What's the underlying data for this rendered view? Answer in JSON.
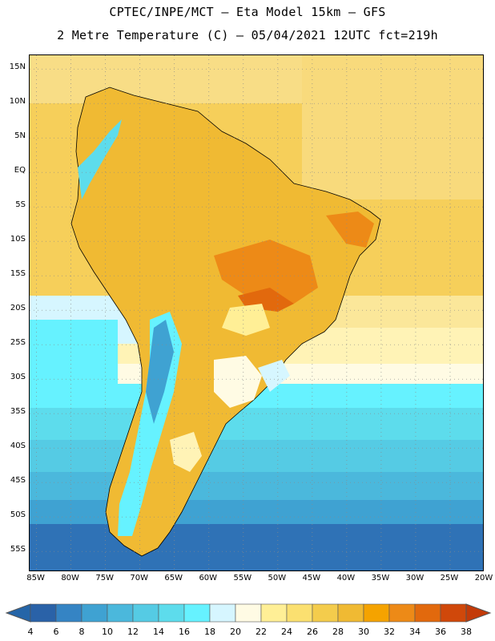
{
  "header": {
    "title_line1": "CPTEC/INPE/MCT –  Eta Model 15km – GFS",
    "title_line2": "2 Metre Temperature (C) – 05/04/2021 12UTC fct=219h"
  },
  "map": {
    "region": "South America",
    "variable": "2 Metre Temperature",
    "units": "C",
    "lon_range": [
      -86,
      -20
    ],
    "lat_range": [
      -58,
      17
    ],
    "lat_ticks": [
      {
        "value": 15,
        "label": "15N"
      },
      {
        "value": 10,
        "label": "10N"
      },
      {
        "value": 5,
        "label": "5N"
      },
      {
        "value": 0,
        "label": "EQ"
      },
      {
        "value": -5,
        "label": "5S"
      },
      {
        "value": -10,
        "label": "10S"
      },
      {
        "value": -15,
        "label": "15S"
      },
      {
        "value": -20,
        "label": "20S"
      },
      {
        "value": -25,
        "label": "25S"
      },
      {
        "value": -30,
        "label": "30S"
      },
      {
        "value": -35,
        "label": "35S"
      },
      {
        "value": -40,
        "label": "40S"
      },
      {
        "value": -45,
        "label": "45S"
      },
      {
        "value": -50,
        "label": "50S"
      },
      {
        "value": -55,
        "label": "55S"
      }
    ],
    "lon_ticks": [
      {
        "value": -85,
        "label": "85W"
      },
      {
        "value": -80,
        "label": "80W"
      },
      {
        "value": -75,
        "label": "75W"
      },
      {
        "value": -70,
        "label": "70W"
      },
      {
        "value": -65,
        "label": "65W"
      },
      {
        "value": -60,
        "label": "60W"
      },
      {
        "value": -55,
        "label": "55W"
      },
      {
        "value": -50,
        "label": "50W"
      },
      {
        "value": -45,
        "label": "45W"
      },
      {
        "value": -40,
        "label": "40W"
      },
      {
        "value": -35,
        "label": "35W"
      },
      {
        "value": -30,
        "label": "30W"
      },
      {
        "value": -25,
        "label": "25W"
      },
      {
        "value": -20,
        "label": "20W"
      }
    ],
    "grid": "dotted every 5 degrees"
  },
  "colorbar": {
    "labels": [
      "4",
      "6",
      "8",
      "10",
      "12",
      "14",
      "16",
      "18",
      "20",
      "22",
      "24",
      "26",
      "28",
      "30",
      "32",
      "34",
      "36",
      "38"
    ],
    "colors": [
      "#2a62a8",
      "#3584c4",
      "#3fa2d2",
      "#4bb8dc",
      "#55cbe4",
      "#5ddcec",
      "#66f2ff",
      "#d6f6ff",
      "#fffbe4",
      "#ffef96",
      "#fbe070",
      "#f4cc4c",
      "#f0ba33",
      "#f5a300",
      "#ed8a17",
      "#e2690d",
      "#d0480a"
    ],
    "low_color": "#2565a8",
    "high_color": "#c33a08"
  }
}
